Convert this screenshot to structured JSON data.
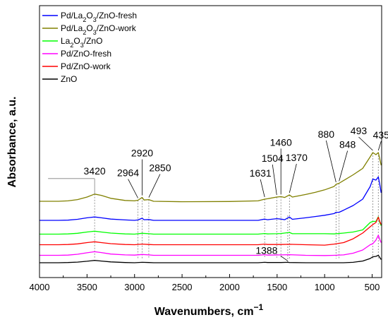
{
  "chart_data": {
    "type": "line",
    "title": "",
    "xlabel": "Wavenumbers, cm",
    "xlabel_superscript": "−1",
    "ylabel": "Absorbance, a.u.",
    "xlim": [
      4000,
      400
    ],
    "x_reversed": true,
    "x_ticks": [
      4000,
      3500,
      3000,
      2500,
      2000,
      1500,
      1000,
      500
    ],
    "y_ticks_shown": false,
    "grid": false,
    "legend_position": "top-left",
    "series": [
      {
        "name": "Pd/La2O3/ZnO-fresh",
        "name_html": "Pd/La<sub>2</sub>O<sub>3</sub>/ZnO-fresh",
        "color": "#0000ff",
        "offset": 2.0,
        "points": [
          [
            4000,
            0.0
          ],
          [
            3800,
            0.0
          ],
          [
            3700,
            0.01
          ],
          [
            3600,
            0.05
          ],
          [
            3500,
            0.12
          ],
          [
            3420,
            0.16
          ],
          [
            3350,
            0.12
          ],
          [
            3250,
            0.06
          ],
          [
            3100,
            0.02
          ],
          [
            3000,
            0.0
          ],
          [
            2964,
            0.02
          ],
          [
            2920,
            0.1
          ],
          [
            2900,
            0.03
          ],
          [
            2850,
            0.04
          ],
          [
            2800,
            0.0
          ],
          [
            2500,
            0.0
          ],
          [
            2000,
            0.0
          ],
          [
            1700,
            0.0
          ],
          [
            1631,
            0.06
          ],
          [
            1600,
            0.03
          ],
          [
            1504,
            0.08
          ],
          [
            1460,
            0.06
          ],
          [
            1420,
            0.03
          ],
          [
            1370,
            0.16
          ],
          [
            1340,
            0.05
          ],
          [
            1200,
            0.12
          ],
          [
            1100,
            0.18
          ],
          [
            1000,
            0.24
          ],
          [
            900,
            0.32
          ],
          [
            880,
            0.38
          ],
          [
            848,
            0.38
          ],
          [
            800,
            0.48
          ],
          [
            700,
            0.7
          ],
          [
            600,
            1.0
          ],
          [
            520,
            1.6
          ],
          [
            493,
            1.95
          ],
          [
            460,
            1.9
          ],
          [
            435,
            2.05
          ],
          [
            420,
            1.7
          ],
          [
            405,
            1.3
          ]
        ]
      },
      {
        "name": "Pd/La2O3/ZnO-work",
        "name_html": "Pd/La<sub>2</sub>O<sub>3</sub>/ZnO-work",
        "color": "#808000",
        "offset": 2.9,
        "points": [
          [
            4000,
            0.0
          ],
          [
            3800,
            0.0
          ],
          [
            3700,
            0.02
          ],
          [
            3600,
            0.08
          ],
          [
            3500,
            0.2
          ],
          [
            3420,
            0.34
          ],
          [
            3350,
            0.28
          ],
          [
            3250,
            0.14
          ],
          [
            3100,
            0.04
          ],
          [
            3000,
            0.02
          ],
          [
            2964,
            0.05
          ],
          [
            2920,
            0.18
          ],
          [
            2900,
            0.06
          ],
          [
            2850,
            0.08
          ],
          [
            2800,
            0.0
          ],
          [
            2500,
            -0.02
          ],
          [
            2000,
            -0.01
          ],
          [
            1700,
            0.02
          ],
          [
            1631,
            0.1
          ],
          [
            1600,
            0.12
          ],
          [
            1504,
            0.2
          ],
          [
            1460,
            0.22
          ],
          [
            1420,
            0.18
          ],
          [
            1370,
            0.3
          ],
          [
            1340,
            0.2
          ],
          [
            1200,
            0.32
          ],
          [
            1100,
            0.42
          ],
          [
            1000,
            0.54
          ],
          [
            900,
            0.7
          ],
          [
            880,
            0.8
          ],
          [
            848,
            0.85
          ],
          [
            800,
            0.98
          ],
          [
            700,
            1.25
          ],
          [
            600,
            1.55
          ],
          [
            520,
            2.1
          ],
          [
            493,
            2.3
          ],
          [
            460,
            2.2
          ],
          [
            435,
            2.3
          ],
          [
            420,
            2.0
          ],
          [
            405,
            1.7
          ]
        ]
      },
      {
        "name": "La2O3/ZnO",
        "name_html": "La<sub>2</sub>O<sub>3</sub>/ZnO",
        "color": "#00ff00",
        "offset": 1.35,
        "points": [
          [
            4000,
            0.0
          ],
          [
            3800,
            0.0
          ],
          [
            3700,
            0.01
          ],
          [
            3600,
            0.04
          ],
          [
            3500,
            0.1
          ],
          [
            3420,
            0.14
          ],
          [
            3350,
            0.1
          ],
          [
            3250,
            0.05
          ],
          [
            3100,
            0.01
          ],
          [
            3000,
            0.0
          ],
          [
            2920,
            0.04
          ],
          [
            2850,
            0.02
          ],
          [
            2800,
            0.0
          ],
          [
            2000,
            0.0
          ],
          [
            1700,
            0.0
          ],
          [
            1631,
            0.03
          ],
          [
            1600,
            0.01
          ],
          [
            1504,
            0.02
          ],
          [
            1460,
            0.03
          ],
          [
            1370,
            0.08
          ],
          [
            1340,
            0.02
          ],
          [
            1200,
            0.02
          ],
          [
            1000,
            0.02
          ],
          [
            900,
            0.01
          ],
          [
            800,
            0.05
          ],
          [
            700,
            0.1
          ],
          [
            600,
            0.2
          ],
          [
            520,
            0.55
          ],
          [
            493,
            0.6
          ],
          [
            460,
            0.6
          ],
          [
            435,
            0.82
          ],
          [
            420,
            0.55
          ],
          [
            405,
            0.4
          ]
        ]
      },
      {
        "name": "Pd/ZnO-fresh",
        "name_html": "Pd/ZnO-fresh",
        "color": "#ff00ff",
        "offset": 0.35,
        "points": [
          [
            4000,
            0.0
          ],
          [
            3800,
            0.0
          ],
          [
            3700,
            0.01
          ],
          [
            3600,
            0.05
          ],
          [
            3500,
            0.12
          ],
          [
            3420,
            0.17
          ],
          [
            3350,
            0.13
          ],
          [
            3250,
            0.06
          ],
          [
            3100,
            0.02
          ],
          [
            3000,
            0.01
          ],
          [
            2920,
            0.04
          ],
          [
            2850,
            0.02
          ],
          [
            2800,
            0.0
          ],
          [
            2000,
            0.0
          ],
          [
            1700,
            0.0
          ],
          [
            1631,
            0.03
          ],
          [
            1600,
            0.01
          ],
          [
            1460,
            0.02
          ],
          [
            1370,
            0.03
          ],
          [
            1200,
            0.0
          ],
          [
            1000,
            -0.01
          ],
          [
            900,
            0.0
          ],
          [
            800,
            0.02
          ],
          [
            700,
            0.1
          ],
          [
            600,
            0.25
          ],
          [
            520,
            0.5
          ],
          [
            493,
            0.55
          ],
          [
            460,
            0.72
          ],
          [
            435,
            0.95
          ],
          [
            420,
            0.75
          ],
          [
            405,
            0.6
          ]
        ]
      },
      {
        "name": "Pd/ZnO-work",
        "name_html": "Pd/ZnO-work",
        "color": "#ff0000",
        "offset": 0.85,
        "points": [
          [
            4000,
            0.0
          ],
          [
            3800,
            0.0
          ],
          [
            3700,
            0.01
          ],
          [
            3600,
            0.04
          ],
          [
            3500,
            0.1
          ],
          [
            3420,
            0.14
          ],
          [
            3350,
            0.1
          ],
          [
            3250,
            0.05
          ],
          [
            3100,
            0.01
          ],
          [
            3000,
            0.0
          ],
          [
            2920,
            0.03
          ],
          [
            2850,
            0.01
          ],
          [
            2800,
            0.0
          ],
          [
            2000,
            0.0
          ],
          [
            1700,
            0.0
          ],
          [
            1631,
            0.03
          ],
          [
            1600,
            0.01
          ],
          [
            1460,
            0.01
          ],
          [
            1370,
            0.02
          ],
          [
            1200,
            0.0
          ],
          [
            1000,
            -0.02
          ],
          [
            900,
            0.03
          ],
          [
            800,
            0.1
          ],
          [
            700,
            0.28
          ],
          [
            600,
            0.55
          ],
          [
            520,
            0.85
          ],
          [
            493,
            0.95
          ],
          [
            460,
            1.05
          ],
          [
            435,
            1.3
          ],
          [
            420,
            1.1
          ],
          [
            405,
            0.95
          ]
        ]
      },
      {
        "name": "ZnO",
        "name_html": "ZnO",
        "color": "#000000",
        "offset": 0.0,
        "points": [
          [
            4000,
            0.0
          ],
          [
            3800,
            0.0
          ],
          [
            3700,
            0.01
          ],
          [
            3600,
            0.03
          ],
          [
            3500,
            0.07
          ],
          [
            3420,
            0.11
          ],
          [
            3350,
            0.08
          ],
          [
            3250,
            0.04
          ],
          [
            3100,
            0.01
          ],
          [
            3000,
            0.0
          ],
          [
            2920,
            0.02
          ],
          [
            2850,
            0.01
          ],
          [
            2800,
            0.0
          ],
          [
            2000,
            0.0
          ],
          [
            1700,
            0.0
          ],
          [
            1631,
            0.02
          ],
          [
            1600,
            0.01
          ],
          [
            1460,
            0.01
          ],
          [
            1388,
            0.02
          ],
          [
            1370,
            0.01
          ],
          [
            1200,
            0.0
          ],
          [
            1000,
            0.0
          ],
          [
            800,
            0.0
          ],
          [
            700,
            0.02
          ],
          [
            600,
            0.08
          ],
          [
            520,
            0.2
          ],
          [
            493,
            0.28
          ],
          [
            460,
            0.3
          ],
          [
            435,
            0.35
          ],
          [
            420,
            0.25
          ],
          [
            405,
            0.15
          ]
        ]
      }
    ],
    "annotations": [
      {
        "text": "3420",
        "x": 3420
      },
      {
        "text": "2964",
        "x": 2964
      },
      {
        "text": "2920",
        "x": 2920
      },
      {
        "text": "2850",
        "x": 2850
      },
      {
        "text": "1631",
        "x": 1631
      },
      {
        "text": "1504",
        "x": 1504
      },
      {
        "text": "1460",
        "x": 1460
      },
      {
        "text": "1370",
        "x": 1370
      },
      {
        "text": "880",
        "x": 880
      },
      {
        "text": "848",
        "x": 848
      },
      {
        "text": "493",
        "x": 493
      },
      {
        "text": "435",
        "x": 435
      },
      {
        "text": "1388",
        "x": 1388
      }
    ]
  }
}
